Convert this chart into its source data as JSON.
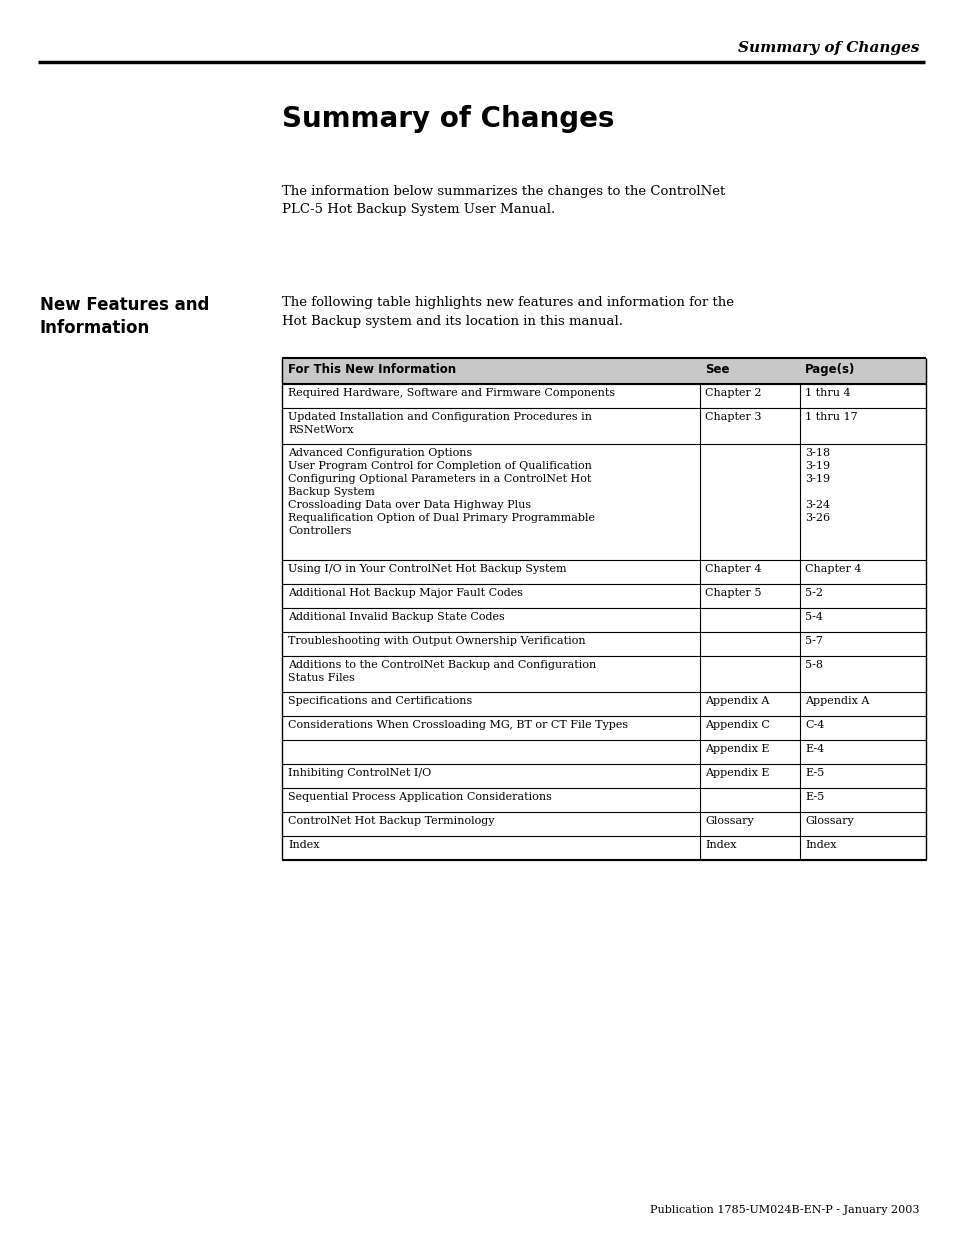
{
  "bg_color": "#ffffff",
  "header_italic_text": "Summary of Changes",
  "title": "Summary of Changes",
  "intro_text": "The information below summarizes the changes to the ControlNet\nPLC-5 Hot Backup System User Manual.",
  "sidebar_title": "New Features and\nInformation",
  "table_intro": "The following table highlights new features and information for the\nHot Backup system and its location in this manual.",
  "col_headers": [
    "For This New Information",
    "See",
    "Page(s)"
  ],
  "col_header_bg": "#c8c8c8",
  "table_rows": [
    {
      "info": "Required Hardware, Software and Firmware Components",
      "see": "Chapter 2",
      "pages": "1 thru 4"
    },
    {
      "info": "Updated Installation and Configuration Procedures in\nRSNetWorx",
      "see": "Chapter 3",
      "pages": "1 thru 17"
    },
    {
      "info": "Advanced Configuration Options\nUser Program Control for Completion of Qualification\nConfiguring Optional Parameters in a ControlNet Hot\nBackup System\nCrossloading Data over Data Highway Plus\nRequalification Option of Dual Primary Programmable\nControllers",
      "see": "",
      "pages": "3-18\n3-19\n3-19\n\n3-24\n3-26"
    },
    {
      "info": "Using I/O in Your ControlNet Hot Backup System",
      "see": "Chapter 4",
      "pages": "Chapter 4"
    },
    {
      "info": "Additional Hot Backup Major Fault Codes",
      "see": "Chapter 5",
      "pages": "5-2"
    },
    {
      "info": "Additional Invalid Backup State Codes",
      "see": "",
      "pages": "5-4"
    },
    {
      "info": "Troubleshooting with Output Ownership Verification",
      "see": "",
      "pages": "5-7"
    },
    {
      "info": "Additions to the ControlNet Backup and Configuration\nStatus Files",
      "see": "",
      "pages": "5-8"
    },
    {
      "info": "Specifications and Certifications",
      "see": "Appendix A",
      "pages": "Appendix A"
    },
    {
      "info": "Considerations When Crossloading MG, BT or CT File Types",
      "see": "Appendix C",
      "pages": "C-4"
    },
    {
      "info": "",
      "see": "Appendix E",
      "pages": "E-4"
    },
    {
      "info": "Inhibiting ControlNet I/O",
      "see": "Appendix E",
      "pages": "E-5"
    },
    {
      "info": "Sequential Process Application Considerations",
      "see": "",
      "pages": "E-5"
    },
    {
      "info": "ControlNet Hot Backup Terminology",
      "see": "Glossary",
      "pages": "Glossary"
    },
    {
      "info": "Index",
      "see": "Index",
      "pages": "Index"
    }
  ],
  "footer_text": "Publication 1785-UM024B-EN-P - January 2003"
}
